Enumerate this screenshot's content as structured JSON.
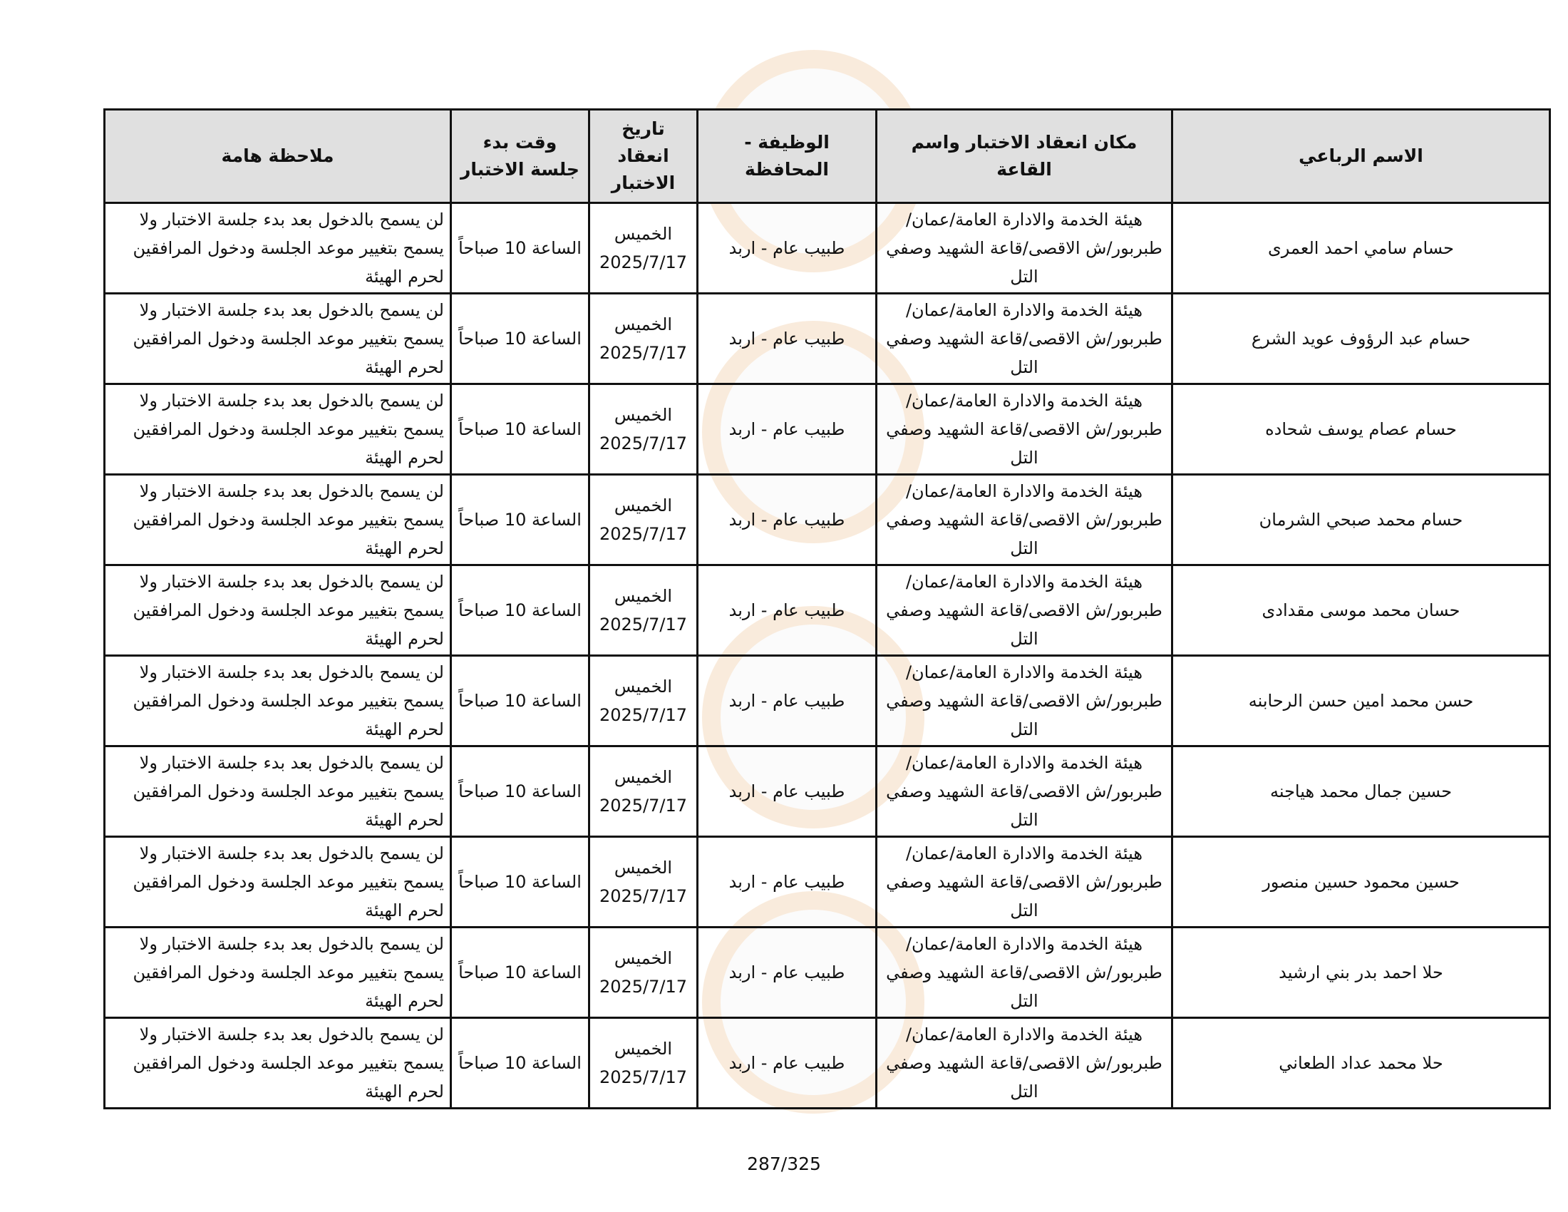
{
  "table": {
    "headers": {
      "name": "الاسم الرباعي",
      "location": "مكان انعقاد الاختبار واسم القاعة",
      "job": "الوظيفة - المحافظة",
      "date": "تاريخ انعقاد الاختبار",
      "time": "وقت بدء جلسة الاختبار",
      "note": "ملاحظة هامة"
    },
    "rows": [
      {
        "name": "حسام سامي احمد العمرى",
        "location": "هيئة الخدمة والادارة العامة/عمان/طبربور/ش الاقصى/قاعة الشهيد وصفي التل",
        "job": "طبيب عام - اربد",
        "date": "الخميس 2025/7/17",
        "time": "الساعة 10 صباحاً",
        "note": "لن يسمح بالدخول بعد بدء جلسة الاختبار ولا يسمح بتغيير موعد الجلسة ودخول المرافقين لحرم الهيئة"
      },
      {
        "name": "حسام عبد الرؤوف عويد الشرع",
        "location": "هيئة الخدمة والادارة العامة/عمان/طبربور/ش الاقصى/قاعة الشهيد وصفي التل",
        "job": "طبيب عام - اربد",
        "date": "الخميس 2025/7/17",
        "time": "الساعة 10 صباحاً",
        "note": "لن يسمح بالدخول بعد بدء جلسة الاختبار ولا يسمح بتغيير موعد الجلسة ودخول المرافقين لحرم الهيئة"
      },
      {
        "name": "حسام عصام يوسف شحاده",
        "location": "هيئة الخدمة والادارة العامة/عمان/طبربور/ش الاقصى/قاعة الشهيد وصفي التل",
        "job": "طبيب عام - اربد",
        "date": "الخميس 2025/7/17",
        "time": "الساعة 10 صباحاً",
        "note": "لن يسمح بالدخول بعد بدء جلسة الاختبار ولا يسمح بتغيير موعد الجلسة ودخول المرافقين لحرم الهيئة"
      },
      {
        "name": "حسام محمد صبحي الشرمان",
        "location": "هيئة الخدمة والادارة العامة/عمان/طبربور/ش الاقصى/قاعة الشهيد وصفي التل",
        "job": "طبيب عام - اربد",
        "date": "الخميس 2025/7/17",
        "time": "الساعة 10 صباحاً",
        "note": "لن يسمح بالدخول بعد بدء جلسة الاختبار ولا يسمح بتغيير موعد الجلسة ودخول المرافقين لحرم الهيئة"
      },
      {
        "name": "حسان محمد موسى مقدادى",
        "location": "هيئة الخدمة والادارة العامة/عمان/طبربور/ش الاقصى/قاعة الشهيد وصفي التل",
        "job": "طبيب عام - اربد",
        "date": "الخميس 2025/7/17",
        "time": "الساعة 10 صباحاً",
        "note": "لن يسمح بالدخول بعد بدء جلسة الاختبار ولا يسمح بتغيير موعد الجلسة ودخول المرافقين لحرم الهيئة"
      },
      {
        "name": "حسن محمد امين حسن الرحابنه",
        "location": "هيئة الخدمة والادارة العامة/عمان/طبربور/ش الاقصى/قاعة الشهيد وصفي التل",
        "job": "طبيب عام - اربد",
        "date": "الخميس 2025/7/17",
        "time": "الساعة 10 صباحاً",
        "note": "لن يسمح بالدخول بعد بدء جلسة الاختبار ولا يسمح بتغيير موعد الجلسة ودخول المرافقين لحرم الهيئة"
      },
      {
        "name": "حسين جمال محمد هياجنه",
        "location": "هيئة الخدمة والادارة العامة/عمان/طبربور/ش الاقصى/قاعة الشهيد وصفي التل",
        "job": "طبيب عام - اربد",
        "date": "الخميس 2025/7/17",
        "time": "الساعة 10 صباحاً",
        "note": "لن يسمح بالدخول بعد بدء جلسة الاختبار ولا يسمح بتغيير موعد الجلسة ودخول المرافقين لحرم الهيئة"
      },
      {
        "name": "حسين محمود حسين منصور",
        "location": "هيئة الخدمة والادارة العامة/عمان/طبربور/ش الاقصى/قاعة الشهيد وصفي التل",
        "job": "طبيب عام - اربد",
        "date": "الخميس 2025/7/17",
        "time": "الساعة 10 صباحاً",
        "note": "لن يسمح بالدخول بعد بدء جلسة الاختبار ولا يسمح بتغيير موعد الجلسة ودخول المرافقين لحرم الهيئة"
      },
      {
        "name": "حلا احمد بدر بني ارشيد",
        "location": "هيئة الخدمة والادارة العامة/عمان/طبربور/ش الاقصى/قاعة الشهيد وصفي التل",
        "job": "طبيب عام - اربد",
        "date": "الخميس 2025/7/17",
        "time": "الساعة 10 صباحاً",
        "note": "لن يسمح بالدخول بعد بدء جلسة الاختبار ولا يسمح بتغيير موعد الجلسة ودخول المرافقين لحرم الهيئة"
      },
      {
        "name": "حلا محمد عداد الطعاني",
        "location": "هيئة الخدمة والادارة العامة/عمان/طبربور/ش الاقصى/قاعة الشهيد وصفي التل",
        "job": "طبيب عام - اربد",
        "date": "الخميس 2025/7/17",
        "time": "الساعة 10 صباحاً",
        "note": "لن يسمح بالدخول بعد بدء جلسة الاختبار ولا يسمح بتغيير موعد الجلسة ودخول المرافقين لحرم الهيئة"
      }
    ]
  },
  "footer": {
    "page": "287/325"
  }
}
